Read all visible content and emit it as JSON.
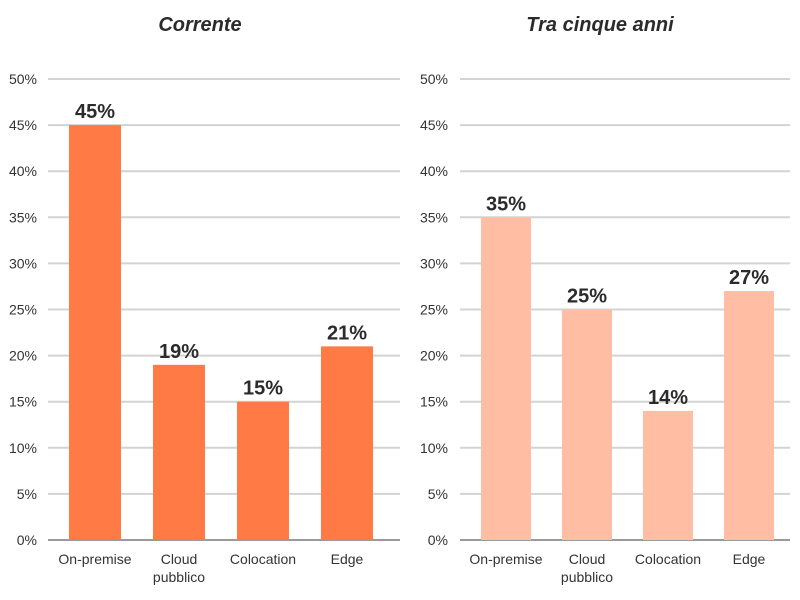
{
  "chart_data": [
    {
      "type": "bar",
      "title": "Corrente",
      "categories": [
        "On-premise",
        "Cloud pubblico",
        "Colocation",
        "Edge"
      ],
      "category_lines": [
        [
          "On-premise"
        ],
        [
          "Cloud",
          "pubblico"
        ],
        [
          "Colocation"
        ],
        [
          "Edge"
        ]
      ],
      "values": [
        45,
        19,
        15,
        21
      ],
      "data_labels": [
        "45%",
        "19%",
        "15%",
        "21%"
      ],
      "ylim": [
        0,
        50
      ],
      "yticks": [
        "0%",
        "5%",
        "10%",
        "15%",
        "20%",
        "25%",
        "30%",
        "35%",
        "40%",
        "45%",
        "50%"
      ],
      "grid": true,
      "bar_color": "#FF7A45"
    },
    {
      "type": "bar",
      "title": "Tra cinque anni",
      "categories": [
        "On-premise",
        "Cloud pubblico",
        "Colocation",
        "Edge"
      ],
      "category_lines": [
        [
          "On-premise"
        ],
        [
          "Cloud",
          "pubblico"
        ],
        [
          "Colocation"
        ],
        [
          "Edge"
        ]
      ],
      "values": [
        35,
        25,
        14,
        27
      ],
      "data_labels": [
        "35%",
        "25%",
        "14%",
        "27%"
      ],
      "ylim": [
        0,
        50
      ],
      "yticks": [
        "0%",
        "5%",
        "10%",
        "15%",
        "20%",
        "25%",
        "30%",
        "35%",
        "40%",
        "45%",
        "50%"
      ],
      "grid": true,
      "bar_color": "#FFBDA3"
    }
  ]
}
